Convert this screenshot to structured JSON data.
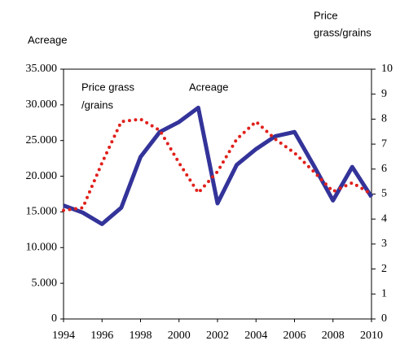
{
  "chart_data": {
    "type": "line",
    "y_label": "Acreage",
    "y2_label": [
      "Price",
      "grass/grains"
    ],
    "annotations": [
      {
        "lines": [
          "Price grass",
          "/grains"
        ]
      },
      {
        "lines": [
          "Acreage"
        ]
      }
    ],
    "x": [
      1994,
      1995,
      1996,
      1997,
      1998,
      1999,
      2000,
      2001,
      2002,
      2003,
      2004,
      2005,
      2006,
      2007,
      2008,
      2009,
      2010
    ],
    "series": [
      {
        "color": "#33339a",
        "values": [
          15900,
          14900,
          13300,
          15600,
          22700,
          26200,
          27600,
          29600,
          16200,
          21600,
          23800,
          25600,
          26200,
          21500,
          16600,
          21300,
          17100
        ]
      },
      {
        "color": "#e0201b",
        "axis": "y2",
        "values": [
          4.35,
          4.45,
          6.25,
          7.9,
          8.0,
          7.55,
          6.25,
          5.05,
          5.9,
          7.2,
          7.9,
          7.2,
          6.65,
          5.9,
          5.1,
          5.45,
          5.0
        ]
      }
    ],
    "xlim": [
      1994,
      2010
    ],
    "xticks": [
      1994,
      1996,
      1998,
      2000,
      2002,
      2004,
      2006,
      2008,
      2010
    ],
    "ylim": [
      0,
      35000
    ],
    "yticks": [
      0,
      {
        "value": 5000,
        "label": "5.000"
      },
      {
        "value": 10000,
        "label": "10.000"
      },
      {
        "value": 15000,
        "label": "15.000"
      },
      {
        "value": 20000,
        "label": "20.000"
      },
      {
        "value": 25000,
        "label": "25.000"
      },
      {
        "value": 30000,
        "label": "30.000"
      },
      {
        "value": 35000,
        "label": "35.000"
      }
    ],
    "y2lim": [
      0,
      10
    ],
    "y2ticks": [
      0,
      1,
      2,
      3,
      4,
      5,
      6,
      7,
      8,
      9,
      10
    ]
  }
}
